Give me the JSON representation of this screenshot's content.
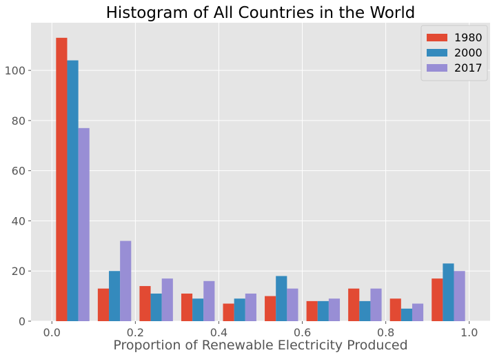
{
  "chart_data": {
    "type": "bar",
    "title": "Histogram of All Countries in the World",
    "xlabel": "Proportion of Renewable Electricity Produced",
    "ylabel": "",
    "bins": [
      [
        0.0,
        0.1
      ],
      [
        0.1,
        0.2
      ],
      [
        0.2,
        0.3
      ],
      [
        0.3,
        0.4
      ],
      [
        0.4,
        0.5
      ],
      [
        0.5,
        0.6
      ],
      [
        0.6,
        0.7
      ],
      [
        0.7,
        0.8
      ],
      [
        0.8,
        0.9
      ],
      [
        0.9,
        1.0
      ]
    ],
    "series": [
      {
        "name": "1980",
        "color": "#E24A33",
        "values": [
          113,
          13,
          14,
          11,
          7,
          10,
          8,
          13,
          9,
          17
        ]
      },
      {
        "name": "2000",
        "color": "#348ABD",
        "values": [
          104,
          20,
          11,
          9,
          9,
          18,
          8,
          8,
          5,
          23
        ]
      },
      {
        "name": "2017",
        "color": "#988ED5",
        "values": [
          77,
          32,
          17,
          16,
          11,
          13,
          9,
          13,
          7,
          20
        ]
      }
    ],
    "xlim": [
      -0.05,
      1.05
    ],
    "ylim": [
      0,
      119
    ],
    "xticks": [
      0.0,
      0.2,
      0.4,
      0.6,
      0.8,
      1.0
    ],
    "xtick_labels": [
      "0.0",
      "0.2",
      "0.4",
      "0.6",
      "0.8",
      "1.0"
    ],
    "yticks": [
      0,
      20,
      40,
      60,
      80,
      100
    ],
    "ytick_labels": [
      "0",
      "20",
      "40",
      "60",
      "80",
      "100"
    ],
    "grid": true,
    "background_color": "#E5E5E5",
    "grid_color": "#FFFFFF",
    "legend_position": "top-right"
  }
}
